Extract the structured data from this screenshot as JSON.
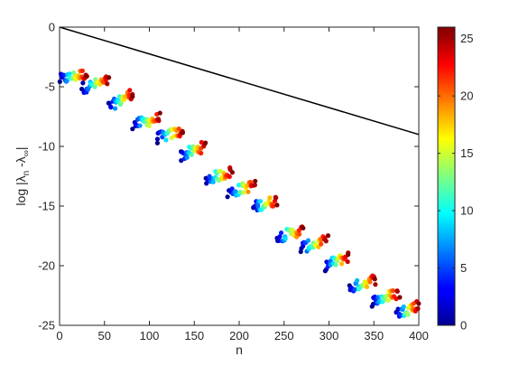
{
  "chart_data": {
    "type": "scatter",
    "xlabel": "n",
    "ylabel": "log |λ_n - λ_∞|",
    "ylabel_parts": {
      "base": "log |λ",
      "sub1": "n",
      "mid": " -λ",
      "sub2": "∞",
      "end": "|"
    },
    "xlim": [
      0,
      400
    ],
    "ylim": [
      -25,
      0
    ],
    "x_ticks": [
      "0",
      "50",
      "100",
      "150",
      "200",
      "250",
      "300",
      "350",
      "400"
    ],
    "y_ticks": [
      "0",
      "-5",
      "-10",
      "-15",
      "-20",
      "-25"
    ],
    "grid": false,
    "reference_line": {
      "x": [
        0,
        400
      ],
      "y": [
        0,
        -9
      ]
    },
    "color_by": "point index within cluster",
    "colorbar": {
      "colormap": "jet",
      "range": [
        0,
        26
      ],
      "ticks": [
        "0",
        "5",
        "10",
        "15",
        "20",
        "25"
      ]
    },
    "clusters": [
      {
        "x_range": [
          0,
          30
        ],
        "y_start": -4.4,
        "y_end": -3.9
      },
      {
        "x_range": [
          25,
          55
        ],
        "y_start": -5.1,
        "y_end": -4.5
      },
      {
        "x_range": [
          55,
          82
        ],
        "y_start": -6.7,
        "y_end": -5.5
      },
      {
        "x_range": [
          82,
          112
        ],
        "y_start": -8.2,
        "y_end": -7.6
      },
      {
        "x_range": [
          108,
          138
        ],
        "y_start": -9.3,
        "y_end": -8.7
      },
      {
        "x_range": [
          135,
          162
        ],
        "y_start": -10.8,
        "y_end": -10.0
      },
      {
        "x_range": [
          162,
          192
        ],
        "y_start": -12.8,
        "y_end": -12.1
      },
      {
        "x_range": [
          188,
          218
        ],
        "y_start": -13.9,
        "y_end": -13.2
      },
      {
        "x_range": [
          215,
          242
        ],
        "y_start": -15.1,
        "y_end": -14.5
      },
      {
        "x_range": [
          242,
          272
        ],
        "y_start": -17.6,
        "y_end": -17.0
      },
      {
        "x_range": [
          268,
          298
        ],
        "y_start": -18.5,
        "y_end": -17.9
      },
      {
        "x_range": [
          295,
          322
        ],
        "y_start": -20.0,
        "y_end": -19.2
      },
      {
        "x_range": [
          322,
          352
        ],
        "y_start": -21.9,
        "y_end": -21.1
      },
      {
        "x_range": [
          348,
          378
        ],
        "y_start": -23.0,
        "y_end": -22.3
      },
      {
        "x_range": [
          375,
          400
        ],
        "y_start": -24.0,
        "y_end": -23.3
      }
    ]
  }
}
